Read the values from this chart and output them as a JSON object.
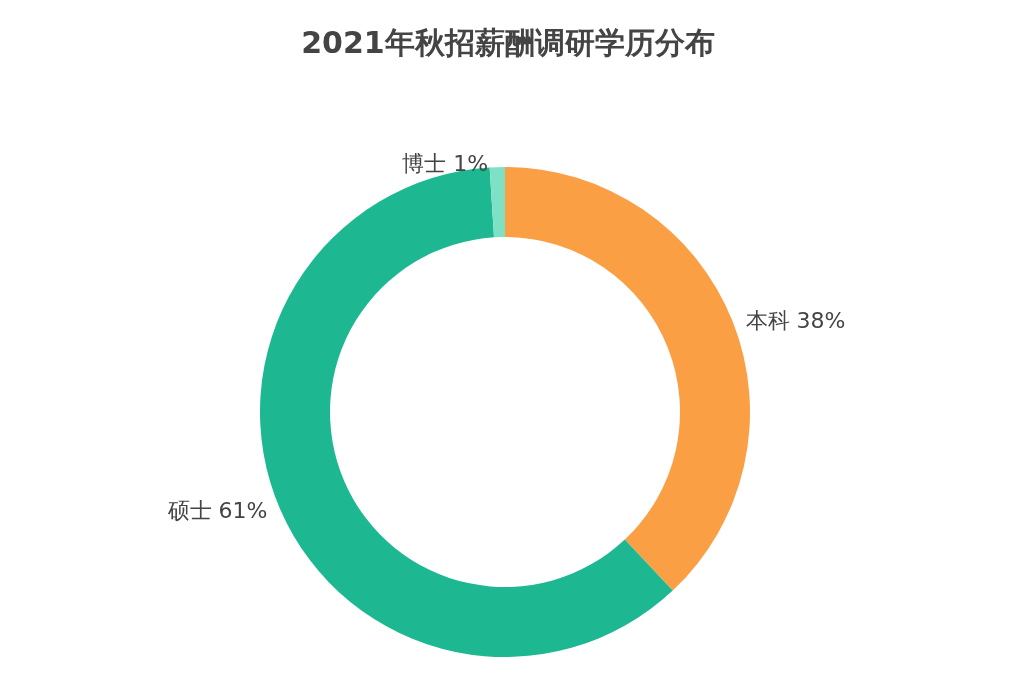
{
  "chart_data": {
    "type": "donut",
    "title": "2021年秋招薪酬调研学历分布",
    "categories": [
      "本科",
      "硕士",
      "博士"
    ],
    "values": [
      38,
      61,
      1
    ],
    "value_labels": [
      "38%",
      "61%",
      "1%"
    ],
    "colors": [
      "#fb9f45",
      "#1db891",
      "#7ee0c4"
    ],
    "legend": false
  }
}
